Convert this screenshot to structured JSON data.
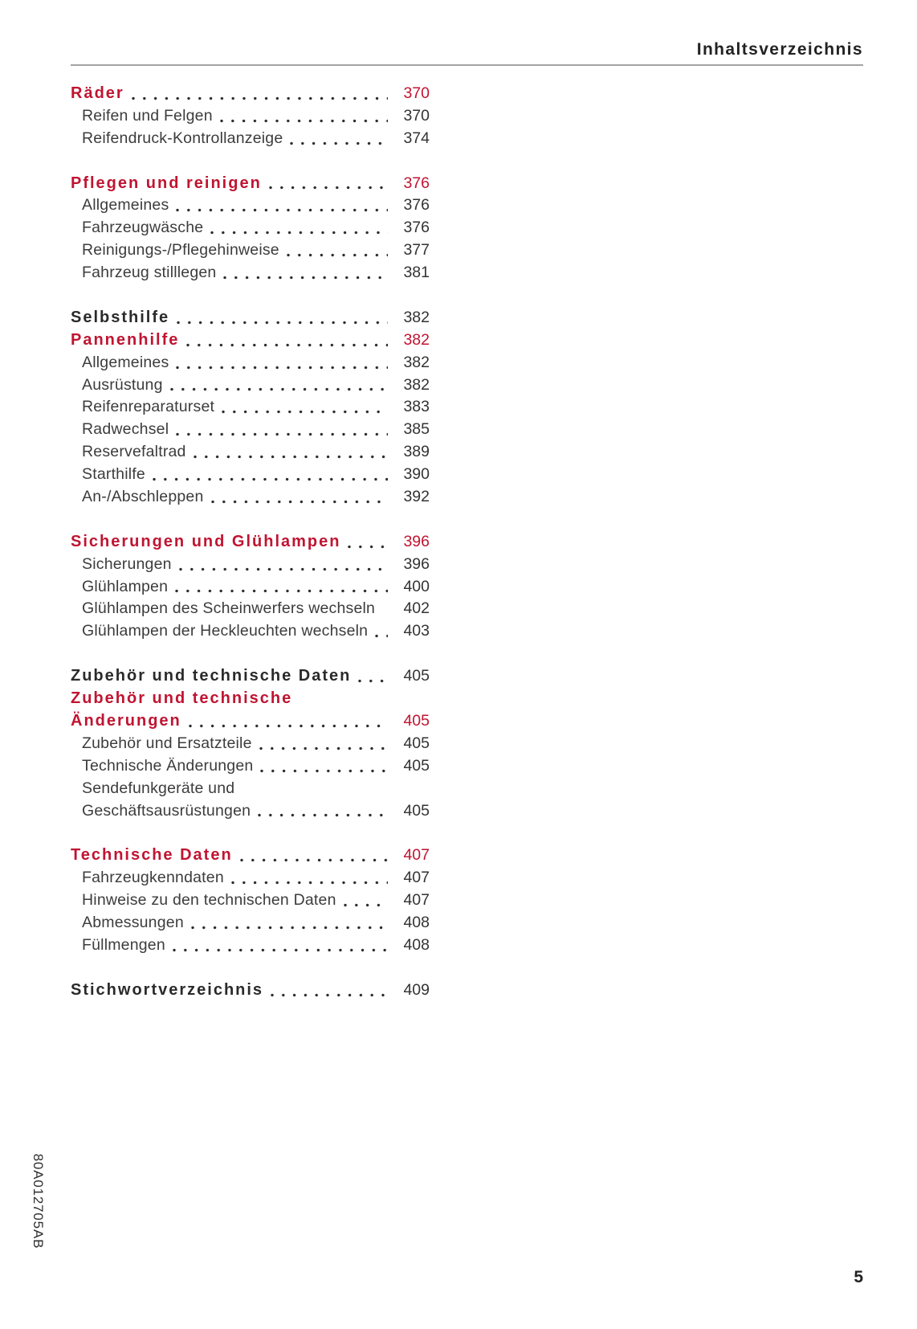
{
  "page": {
    "header_title": "Inhaltsverzeichnis",
    "page_number": "5",
    "print_code": "80A012705AB",
    "accent_color": "#c01431",
    "rule_color": "#a3a3a3"
  },
  "toc": {
    "groups": [
      {
        "entries": [
          {
            "label": "Räder",
            "page": "370",
            "style": "section",
            "color": "red"
          },
          {
            "label": "Reifen und Felgen",
            "page": "370",
            "style": "sub"
          },
          {
            "label": "Reifendruck-Kontrollanzeige",
            "page": "374",
            "style": "sub"
          }
        ]
      },
      {
        "entries": [
          {
            "label": "Pflegen und reinigen",
            "page": "376",
            "style": "section",
            "color": "red"
          },
          {
            "label": "Allgemeines",
            "page": "376",
            "style": "sub"
          },
          {
            "label": "Fahrzeugwäsche",
            "page": "376",
            "style": "sub"
          },
          {
            "label": "Reinigungs-/Pflegehinweise",
            "page": "377",
            "style": "sub"
          },
          {
            "label": "Fahrzeug stilllegen",
            "page": "381",
            "style": "sub"
          }
        ]
      },
      {
        "entries": [
          {
            "label": "Selbsthilfe",
            "page": "382",
            "style": "section",
            "color": "black"
          },
          {
            "label": "Pannenhilfe",
            "page": "382",
            "style": "section",
            "color": "red"
          },
          {
            "label": "Allgemeines",
            "page": "382",
            "style": "sub"
          },
          {
            "label": "Ausrüstung",
            "page": "382",
            "style": "sub"
          },
          {
            "label": "Reifenreparaturset",
            "page": "383",
            "style": "sub"
          },
          {
            "label": "Radwechsel",
            "page": "385",
            "style": "sub"
          },
          {
            "label": "Reservefaltrad",
            "page": "389",
            "style": "sub"
          },
          {
            "label": "Starthilfe",
            "page": "390",
            "style": "sub"
          },
          {
            "label": "An-/Abschleppen",
            "page": "392",
            "style": "sub"
          }
        ]
      },
      {
        "entries": [
          {
            "label": "Sicherungen und Glühlampen",
            "page": "396",
            "style": "section",
            "color": "red"
          },
          {
            "label": "Sicherungen",
            "page": "396",
            "style": "sub"
          },
          {
            "label": "Glühlampen",
            "page": "400",
            "style": "sub"
          },
          {
            "label": "Glühlampen des Scheinwerfers wechseln",
            "page": "402",
            "style": "sub",
            "leader": false
          },
          {
            "label": "Glühlampen der Heckleuchten wechseln",
            "page": "403",
            "style": "sub"
          }
        ]
      },
      {
        "entries": [
          {
            "label": "Zubehör und technische Daten",
            "page": "405",
            "style": "section",
            "color": "black"
          },
          {
            "label": "Zubehör und technische",
            "page": null,
            "style": "section",
            "color": "red"
          },
          {
            "label": "Änderungen",
            "page": "405",
            "style": "section",
            "color": "red"
          },
          {
            "label": "Zubehör und Ersatzteile",
            "page": "405",
            "style": "sub"
          },
          {
            "label": "Technische Änderungen",
            "page": "405",
            "style": "sub"
          },
          {
            "label": "Sendefunkgeräte und",
            "page": null,
            "style": "sub"
          },
          {
            "label": "Geschäftsausrüstungen",
            "page": "405",
            "style": "sub"
          }
        ]
      },
      {
        "entries": [
          {
            "label": "Technische Daten",
            "page": "407",
            "style": "section",
            "color": "red"
          },
          {
            "label": "Fahrzeugkenndaten",
            "page": "407",
            "style": "sub"
          },
          {
            "label": "Hinweise zu den technischen Daten",
            "page": "407",
            "style": "sub"
          },
          {
            "label": "Abmessungen",
            "page": "408",
            "style": "sub"
          },
          {
            "label": "Füllmengen",
            "page": "408",
            "style": "sub"
          }
        ]
      },
      {
        "entries": [
          {
            "label": "Stichwortverzeichnis",
            "page": "409",
            "style": "section",
            "color": "black"
          }
        ]
      }
    ]
  }
}
